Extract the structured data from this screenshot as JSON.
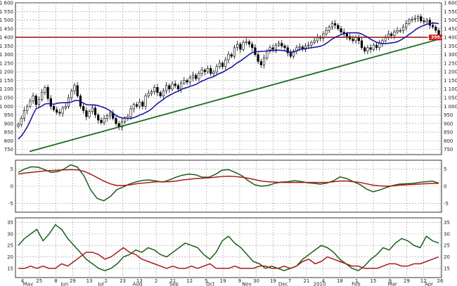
{
  "chart_data": [
    {
      "type": "candlestick",
      "axis": "right-and-left",
      "ylim": [
        720,
        1600
      ],
      "y_ticks": [
        "1 600",
        "1 550",
        "1 500",
        "1 450",
        "1 400",
        "1 350",
        "1 300",
        "1 250",
        "1 200",
        "1 150",
        "1 100",
        "1 050",
        "1 000",
        "950",
        "900",
        "850",
        "800",
        "750"
      ],
      "y_tick_values": [
        1600,
        1550,
        1500,
        1450,
        1400,
        1350,
        1300,
        1250,
        1200,
        1150,
        1100,
        1050,
        1000,
        950,
        900,
        850,
        800,
        750
      ],
      "last_price_label": "1 399.4",
      "horizontal_line_level": 1400,
      "trend_line": {
        "start": 738,
        "end": 1393
      },
      "closes": [
        895,
        930,
        975,
        1000,
        1030,
        1060,
        1010,
        1040,
        1080,
        1110,
        1045,
        1000,
        980,
        965,
        960,
        990,
        1000,
        1050,
        1090,
        1120,
        1060,
        1000,
        975,
        940,
        970,
        990,
        950,
        920,
        905,
        930,
        945,
        960,
        930,
        900,
        880,
        910,
        930,
        940,
        985,
        1010,
        1000,
        1025,
        1000,
        1060,
        1075,
        1085,
        1110,
        1080,
        1060,
        1090,
        1120,
        1100,
        1130,
        1120,
        1100,
        1135,
        1150,
        1140,
        1165,
        1180,
        1160,
        1190,
        1210,
        1200,
        1220,
        1190,
        1200,
        1230,
        1250,
        1230,
        1270,
        1300,
        1290,
        1340,
        1360,
        1330,
        1370,
        1375,
        1360,
        1340,
        1300,
        1260,
        1240,
        1280,
        1320,
        1340,
        1330,
        1355,
        1365,
        1350,
        1340,
        1310,
        1290,
        1320,
        1340,
        1345,
        1330,
        1350,
        1355,
        1370,
        1380,
        1400,
        1395,
        1420,
        1440,
        1460,
        1480,
        1470,
        1450,
        1430,
        1420,
        1405,
        1390,
        1380,
        1400,
        1380,
        1340,
        1320,
        1340,
        1330,
        1355,
        1340,
        1365,
        1380,
        1400,
        1420,
        1410,
        1430,
        1440,
        1440,
        1460,
        1480,
        1500,
        1505,
        1510,
        1520,
        1495,
        1490,
        1500,
        1470,
        1460,
        1440,
        1399
      ],
      "ma": {
        "start": 810,
        "end": 1438
      }
    },
    {
      "type": "line",
      "ylim": [
        -7.5,
        7.5
      ],
      "y_ticks": [
        "5",
        "0",
        "-5"
      ],
      "y_tick_values": [
        5,
        0,
        -5
      ],
      "series": [
        {
          "color": "#1a5e1a",
          "values": [
            4,
            5,
            5.6,
            5.5,
            4.8,
            4,
            4.2,
            5,
            6.2,
            5.5,
            3,
            -1,
            -3.5,
            -4.2,
            -3,
            -1,
            -0.2,
            0.7,
            1.3,
            1.7,
            1.8,
            1.5,
            1.2,
            1.8,
            2.6,
            3.2,
            3.5,
            3.3,
            2.6,
            2.6,
            3.4,
            4.6,
            4.8,
            4,
            3.1,
            1.6,
            0.4,
            0,
            0.2,
            0.8,
            1.2,
            1.3,
            1.6,
            1.4,
            1,
            0.8,
            0.6,
            0.9,
            1.6,
            2.7,
            2.2,
            1.3,
            0.5,
            -0.8,
            -1.6,
            -1.1,
            -0.4,
            0.2,
            0.6,
            0.7,
            0.8,
            1.1,
            1.3,
            1.5,
            0.9
          ]
        },
        {
          "color": "#aa1a1a",
          "values": [
            3.5,
            3.8,
            4,
            4.2,
            4.4,
            4.5,
            4.6,
            4.7,
            4.8,
            4.7,
            4.3,
            3.5,
            2.5,
            1.5,
            0.7,
            0.2,
            0.2,
            0.4,
            0.7,
            0.9,
            1.1,
            1.3,
            1.3,
            1.3,
            1.5,
            1.8,
            2.0,
            2.2,
            2.3,
            2.4,
            2.6,
            2.8,
            2.9,
            2.8,
            2.6,
            2.3,
            1.9,
            1.5,
            1.3,
            1.2,
            1.1,
            1.1,
            1.1,
            1.1,
            1.1,
            1.1,
            1.1,
            1.1,
            1.3,
            1.5,
            1.5,
            1.3,
            1.1,
            0.7,
            0.3,
            0.1,
            0,
            0.1,
            0.3,
            0.4,
            0.5,
            0.6,
            0.7,
            0.8,
            0.8
          ]
        }
      ]
    },
    {
      "type": "line",
      "ylim": [
        11,
        37
      ],
      "y_ticks": [
        "35",
        "30",
        "25",
        "20",
        "15"
      ],
      "y_tick_values": [
        35,
        30,
        25,
        20,
        15
      ],
      "series": [
        {
          "color": "#1a5e1a",
          "values": [
            25,
            28,
            30,
            32,
            27,
            30,
            34,
            32,
            28,
            25,
            22,
            19,
            17,
            15,
            14,
            15,
            17,
            20,
            21,
            23,
            22,
            24,
            23,
            21,
            20,
            22,
            24,
            26,
            25,
            24,
            21,
            19,
            22,
            27,
            29,
            26,
            24,
            21,
            18,
            17,
            15,
            16,
            15,
            14,
            15,
            16,
            19,
            21,
            23,
            25,
            24,
            22,
            19,
            17,
            15,
            14,
            16,
            19,
            21,
            24,
            23,
            26,
            28,
            27,
            25,
            24,
            29,
            27,
            26
          ]
        },
        {
          "color": "#aa1a1a",
          "values": [
            15,
            15,
            16,
            15,
            16,
            15,
            15,
            17,
            16,
            18,
            20,
            22,
            22,
            21,
            19,
            20,
            22,
            24,
            22,
            21,
            19,
            18,
            17,
            16,
            15,
            16,
            15,
            15,
            16,
            15,
            16,
            17,
            15,
            15,
            15,
            16,
            15,
            15,
            15,
            16,
            16,
            15,
            15,
            16,
            15,
            16,
            18,
            19,
            17,
            18,
            20,
            19,
            18,
            17,
            16,
            16,
            15,
            15,
            15,
            16,
            17,
            17,
            16,
            16,
            17,
            17,
            18,
            19,
            20
          ]
        }
      ]
    }
  ],
  "x_axis": {
    "day_labels": [
      "4",
      "25",
      "8",
      "29",
      "13",
      "2",
      "23",
      "13",
      "2",
      "21",
      "12",
      "5",
      "19",
      "9",
      "30",
      "19",
      "7",
      "21",
      "4",
      "18",
      "1",
      "15",
      "9",
      "29",
      "12",
      "26"
    ],
    "month_labels": [
      "May",
      "Jun",
      "Jul",
      "Aug",
      "Sep",
      "Oct",
      "Nov",
      "Dec",
      "2010",
      "Feb",
      "Mar",
      "Apr"
    ]
  },
  "colors": {
    "background": "#ffffff",
    "grid": "#999999",
    "candles": "#000000",
    "moving_average": "#1a1aa0",
    "trend_line": "#1e6b1e",
    "resistance_line": "#a01a1a",
    "price_tag": "#c81e1e"
  }
}
